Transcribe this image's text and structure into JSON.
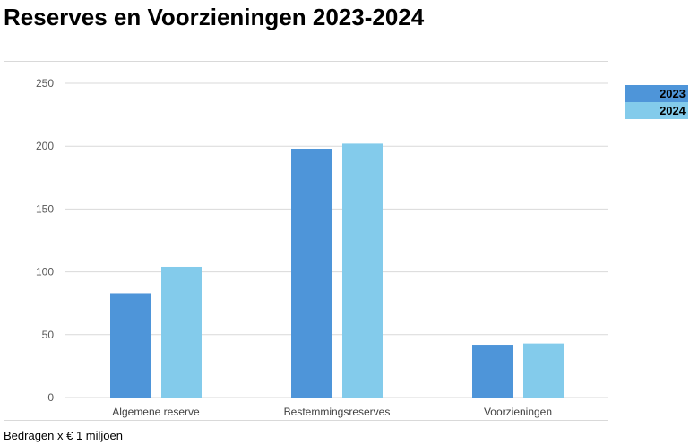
{
  "title": "Reserves en Voorzieningen 2023-2024",
  "footnote": "Bedragen x € 1 miljoen",
  "colors": {
    "2023": "#4e95d9",
    "2024": "#83cbeb",
    "grid": "#d9d9d9"
  },
  "chart_data": {
    "type": "bar",
    "title": "Reserves en Voorzieningen 2023-2024",
    "xlabel": "",
    "ylabel": "",
    "categories": [
      "Algemene reserve",
      "Bestemmingsreserves",
      "Voorzieningen"
    ],
    "series": [
      {
        "name": "2023",
        "values": [
          83,
          198,
          42
        ]
      },
      {
        "name": "2024",
        "values": [
          104,
          202,
          43
        ]
      }
    ],
    "ylim": [
      0,
      250
    ],
    "yticks": [
      0,
      50,
      100,
      150,
      200,
      250
    ],
    "grid": true,
    "legend": "top-right"
  }
}
